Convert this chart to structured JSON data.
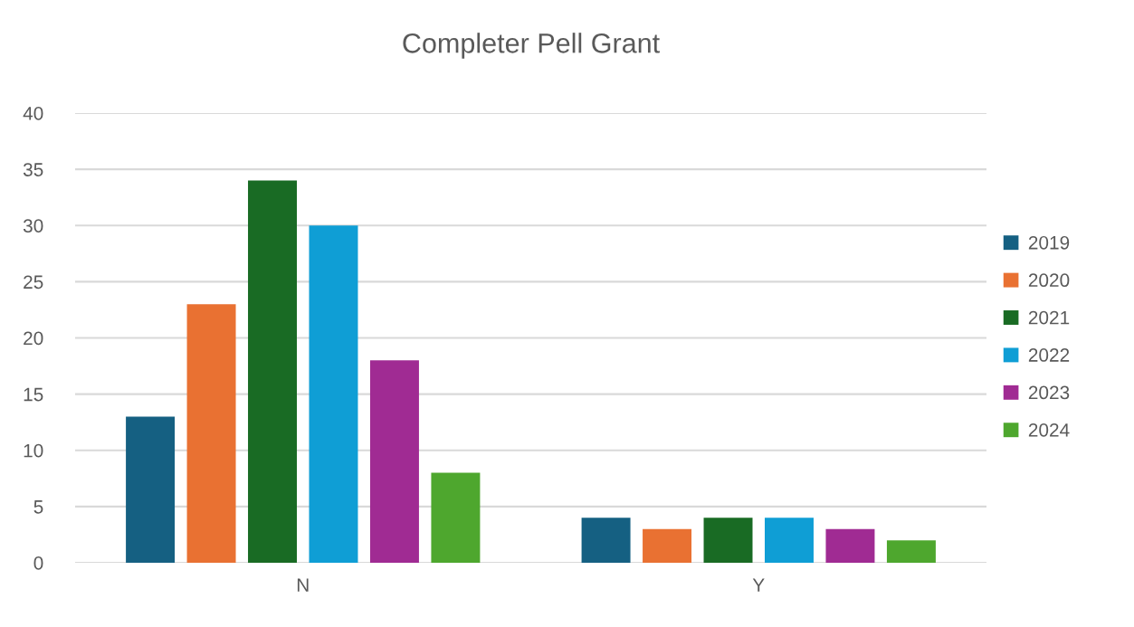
{
  "chart_data": {
    "type": "bar",
    "title": "Completer Pell Grant",
    "categories": [
      "N",
      "Y"
    ],
    "series": [
      {
        "name": "2019",
        "color": "#156082",
        "values": [
          13,
          4
        ]
      },
      {
        "name": "2020",
        "color": "#e97132",
        "values": [
          23,
          3
        ]
      },
      {
        "name": "2021",
        "color": "#196b24",
        "values": [
          34,
          4
        ]
      },
      {
        "name": "2022",
        "color": "#0f9ed5",
        "values": [
          30,
          4
        ]
      },
      {
        "name": "2023",
        "color": "#a02b93",
        "values": [
          18,
          3
        ]
      },
      {
        "name": "2024",
        "color": "#4ea72e",
        "values": [
          8,
          2
        ]
      }
    ],
    "ylim": [
      0,
      40
    ],
    "yticks": [
      0,
      5,
      10,
      15,
      20,
      25,
      30,
      35,
      40
    ],
    "grid": "y",
    "legend": "right"
  }
}
